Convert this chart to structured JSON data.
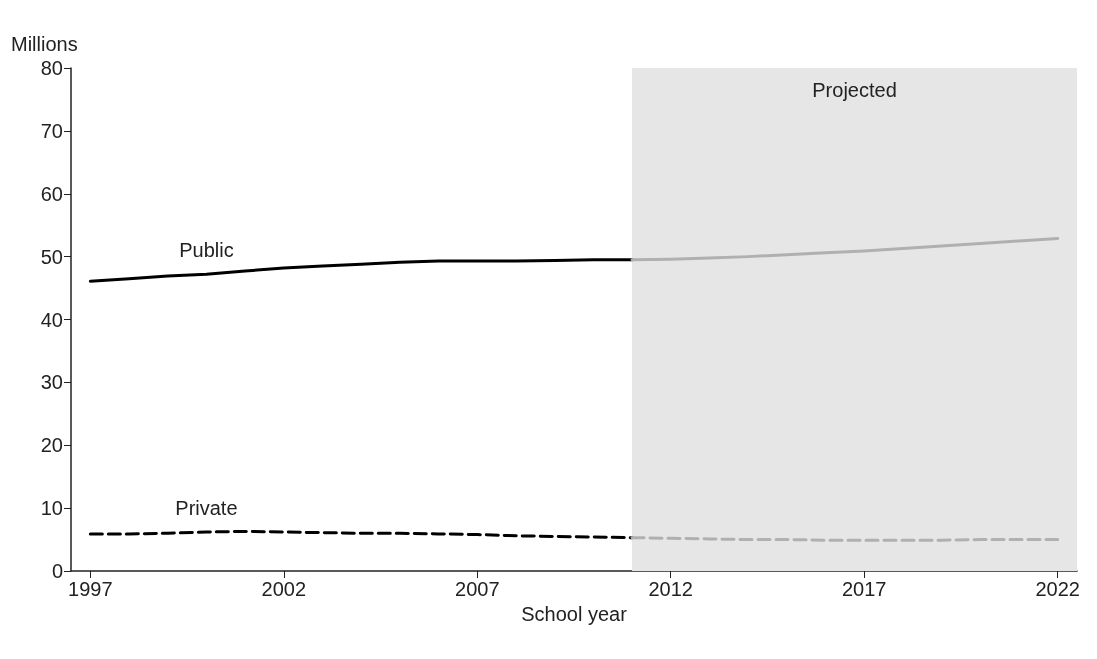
{
  "chart_data": {
    "type": "line",
    "xlabel": "School year",
    "ylabel": "Millions",
    "xlim": [
      1996.5,
      2022.5
    ],
    "xticks": [
      1997,
      2002,
      2007,
      2012,
      2017,
      2022
    ],
    "ylim": [
      0,
      80
    ],
    "yticks": [
      0,
      10,
      20,
      30,
      40,
      50,
      60,
      70,
      80
    ],
    "grid": false,
    "legend": false,
    "marker": "none",
    "series": [
      {
        "name": "Public",
        "color": "#000000",
        "line_style": "solid",
        "x": [
          1997,
          1998,
          1999,
          2000,
          2001,
          2002,
          2003,
          2004,
          2005,
          2006,
          2007,
          2008,
          2009,
          2010,
          2011
        ],
        "values": [
          46.1,
          46.5,
          46.9,
          47.2,
          47.7,
          48.2,
          48.5,
          48.8,
          49.1,
          49.3,
          49.3,
          49.3,
          49.4,
          49.5,
          49.5
        ]
      },
      {
        "color": "#b0b0b0",
        "line_style": "solid",
        "x": [
          2011,
          2012,
          2013,
          2014,
          2015,
          2016,
          2017,
          2018,
          2019,
          2020,
          2021,
          2022
        ],
        "values": [
          49.5,
          49.6,
          49.8,
          50.0,
          50.3,
          50.6,
          50.9,
          51.3,
          51.7,
          52.1,
          52.5,
          52.9
        ]
      },
      {
        "name": "Private",
        "color": "#000000",
        "line_style": "dashed",
        "x": [
          1997,
          1998,
          1999,
          2000,
          2001,
          2002,
          2003,
          2004,
          2005,
          2006,
          2007,
          2008,
          2009,
          2010,
          2011
        ],
        "values": [
          5.9,
          5.9,
          6.0,
          6.2,
          6.3,
          6.2,
          6.1,
          6.0,
          6.0,
          5.9,
          5.8,
          5.6,
          5.5,
          5.4,
          5.3
        ]
      },
      {
        "color": "#b0b0b0",
        "line_style": "dashed",
        "x": [
          2011,
          2012,
          2013,
          2014,
          2015,
          2016,
          2017,
          2018,
          2019,
          2020,
          2021,
          2022
        ],
        "values": [
          5.3,
          5.2,
          5.1,
          5.0,
          5.0,
          4.9,
          4.9,
          4.9,
          4.9,
          5.0,
          5.0,
          5.0
        ]
      }
    ],
    "bands": [
      {
        "axis": "x",
        "from": 2011,
        "to": 2022.5,
        "label": "Projected",
        "color": "#e6e6e6"
      }
    ]
  }
}
